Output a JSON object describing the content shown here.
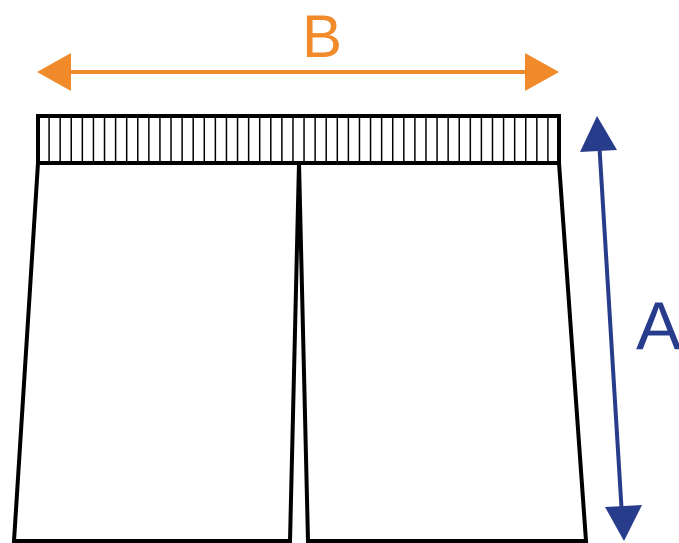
{
  "diagram": {
    "subject": "shorts",
    "dimensions": [
      {
        "id": "width",
        "label": "B",
        "color": "#F08A2A"
      },
      {
        "id": "length",
        "label": "A",
        "color": "#283C8C"
      }
    ],
    "colors": {
      "outline": "#000000",
      "fill": "#FFFFFF"
    }
  }
}
